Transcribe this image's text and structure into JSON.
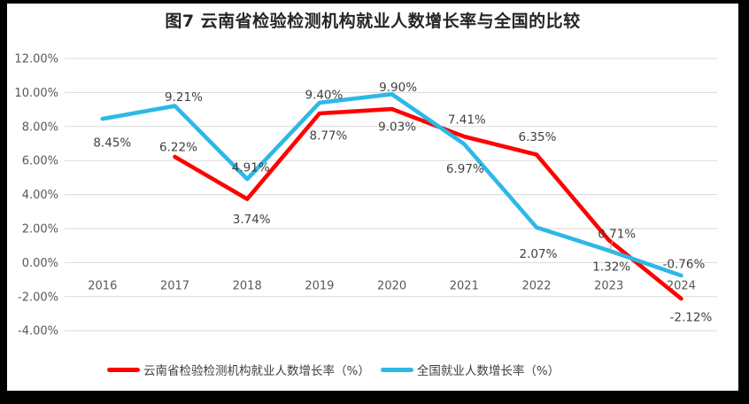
{
  "frame": {
    "background_color": "#000000",
    "panel_color": "#ffffff"
  },
  "chart_data": {
    "type": "line",
    "title": "图7  云南省检验检测机构就业人数增长率与全国的比较",
    "x_axis": {
      "categories": [
        "2016",
        "2017",
        "2018",
        "2019",
        "2020",
        "2021",
        "2022",
        "2023",
        "2024"
      ]
    },
    "y_axis": {
      "tick_labels": [
        "12.00%",
        "10.00%",
        "8.00%",
        "6.00%",
        "4.00%",
        "2.00%",
        "0.00%",
        "-2.00%",
        "-4.00%"
      ],
      "tick_values": [
        12,
        10,
        8,
        6,
        4,
        2,
        0,
        -2,
        -4
      ],
      "min": -4,
      "max": 12
    },
    "grid": true,
    "legend_position": "bottom",
    "colors": {
      "grid": "#d9d9d9",
      "axis_text": "#595959",
      "data_label_text": "#404040",
      "leader_line": "#a6a6a6",
      "yunnan_red": "#ff0000",
      "national_blue": "#2db8e6"
    },
    "series": [
      {
        "name": "云南省检验检测机构就业人数增长率（%）",
        "color": "#ff0000",
        "values": [
          null,
          6.22,
          3.74,
          8.77,
          9.03,
          7.41,
          6.35,
          1.32,
          -2.12
        ],
        "point_labels": [
          "",
          "6.22%",
          "3.74%",
          "8.77%",
          "9.03%",
          "7.41%",
          "6.35%",
          "1.32%",
          "-2.12%"
        ],
        "label_offsets": [
          [
            0,
            0
          ],
          [
            4,
            -11
          ],
          [
            5,
            23
          ],
          [
            10,
            25
          ],
          [
            6,
            20
          ],
          [
            3,
            -19
          ],
          [
            1,
            -20
          ],
          [
            3,
            30
          ],
          [
            11,
            21
          ]
        ]
      },
      {
        "name": "全国就业人数增长率（%）",
        "color": "#2db8e6",
        "values": [
          8.45,
          9.21,
          4.91,
          9.4,
          9.9,
          6.97,
          2.07,
          0.71,
          -0.76
        ],
        "point_labels": [
          "8.45%",
          "9.21%",
          "4.91%",
          "9.40%",
          "9.90%",
          "6.97%",
          "2.07%",
          "0.71%",
          "-0.76%"
        ],
        "label_offsets": [
          [
            11,
            27
          ],
          [
            10,
            -10
          ],
          [
            4,
            -13
          ],
          [
            5,
            -9
          ],
          [
            7,
            -8
          ],
          [
            1,
            28
          ],
          [
            2,
            30
          ],
          [
            9,
            -19
          ],
          [
            3,
            -13
          ]
        ]
      }
    ],
    "callout": {
      "series_index": 1,
      "point_index": 7
    }
  }
}
